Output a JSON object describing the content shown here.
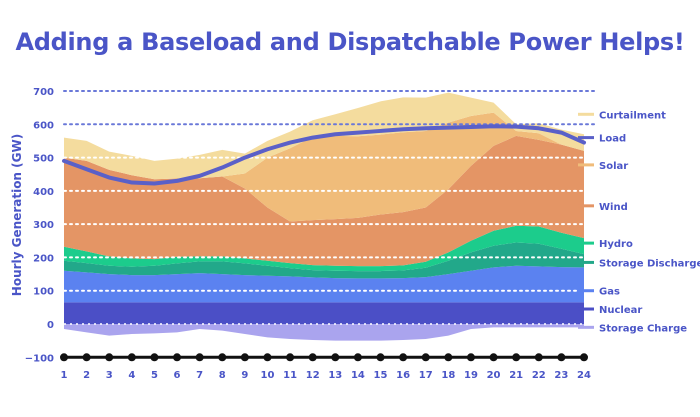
{
  "chart_data": {
    "type": "area",
    "title": "Adding a Baseload and Dispatchable Power Helps!",
    "xlabel": "",
    "ylabel": "Hourly Generation (GW)",
    "x": [
      1,
      2,
      3,
      4,
      5,
      6,
      7,
      8,
      9,
      10,
      11,
      12,
      13,
      14,
      15,
      16,
      17,
      18,
      19,
      20,
      21,
      22,
      23,
      24
    ],
    "xlim": [
      1,
      24
    ],
    "ylim": [
      -100,
      700
    ],
    "yticks": [
      -100,
      0,
      100,
      200,
      300,
      400,
      500,
      600,
      700
    ],
    "grid": "horizontal dotted",
    "stacked_series": [
      {
        "name": "Nuclear",
        "color": "#4b4fc6",
        "values": [
          65,
          65,
          65,
          65,
          65,
          65,
          65,
          65,
          65,
          65,
          65,
          65,
          65,
          65,
          65,
          65,
          65,
          65,
          65,
          65,
          65,
          65,
          65,
          65
        ]
      },
      {
        "name": "Gas",
        "color": "#5b82f0",
        "values": [
          95,
          90,
          85,
          82,
          82,
          85,
          88,
          85,
          82,
          80,
          78,
          75,
          73,
          72,
          72,
          73,
          76,
          85,
          95,
          105,
          110,
          108,
          106,
          105
        ]
      },
      {
        "name": "Storage Discharge",
        "color": "#22a88a",
        "values": [
          30,
          28,
          25,
          25,
          28,
          32,
          35,
          38,
          35,
          30,
          25,
          22,
          22,
          22,
          22,
          23,
          28,
          40,
          55,
          65,
          70,
          68,
          55,
          40
        ]
      },
      {
        "name": "Hydro",
        "color": "#1ccc8c",
        "values": [
          42,
          35,
          28,
          25,
          20,
          20,
          15,
          15,
          15,
          15,
          15,
          15,
          15,
          15,
          15,
          15,
          18,
          25,
          35,
          45,
          50,
          52,
          48,
          48
        ]
      },
      {
        "name": "Wind",
        "color": "#e49565",
        "values": [
          268,
          272,
          260,
          250,
          240,
          235,
          235,
          240,
          210,
          160,
          125,
          135,
          140,
          145,
          155,
          160,
          163,
          190,
          225,
          255,
          270,
          260,
          265,
          262
        ]
      },
      {
        "name": "Solar",
        "color": "#f0bc7a",
        "values": [
          0,
          0,
          0,
          0,
          0,
          0,
          0,
          0,
          45,
          150,
          220,
          250,
          250,
          245,
          240,
          240,
          230,
          200,
          150,
          100,
          15,
          20,
          0,
          0
        ]
      },
      {
        "name": "Curtailment",
        "color": "#f4dc9e",
        "values": [
          60,
          60,
          55,
          58,
          55,
          60,
          70,
          80,
          60,
          50,
          50,
          50,
          65,
          85,
          100,
          105,
          100,
          90,
          55,
          30,
          20,
          30,
          45,
          50
        ]
      }
    ],
    "negative_series": {
      "name": "Storage Charge",
      "color": "#aaa4ee",
      "values": [
        -15,
        -25,
        -35,
        -30,
        -28,
        -25,
        -15,
        -20,
        -30,
        -40,
        -45,
        -48,
        -50,
        -50,
        -50,
        -48,
        -45,
        -35,
        -15,
        -10,
        -10,
        -10,
        -10,
        -10
      ]
    },
    "line_series": {
      "name": "Load",
      "color": "#5a60c8",
      "values": [
        490,
        465,
        440,
        425,
        422,
        430,
        445,
        470,
        500,
        525,
        545,
        560,
        570,
        575,
        580,
        585,
        588,
        590,
        592,
        594,
        593,
        588,
        575,
        545
      ]
    },
    "legend": [
      {
        "label": "Curtailment",
        "color": "#f4dc9e",
        "at": 630
      },
      {
        "label": "Load",
        "color": "#5a60c8",
        "at": 560
      },
      {
        "label": "Solar",
        "color": "#f0bc7a",
        "at": 478
      },
      {
        "label": "Wind",
        "color": "#e49565",
        "at": 355
      },
      {
        "label": "Hydro",
        "color": "#1ccc8c",
        "at": 243
      },
      {
        "label": "Storage Discharge",
        "color": "#22a88a",
        "at": 185
      },
      {
        "label": "Gas",
        "color": "#5b82f0",
        "at": 100
      },
      {
        "label": "Nuclear",
        "color": "#4b4fc6",
        "at": 45
      },
      {
        "label": "Storage Charge",
        "color": "#aaa4ee",
        "at": -10
      }
    ]
  }
}
